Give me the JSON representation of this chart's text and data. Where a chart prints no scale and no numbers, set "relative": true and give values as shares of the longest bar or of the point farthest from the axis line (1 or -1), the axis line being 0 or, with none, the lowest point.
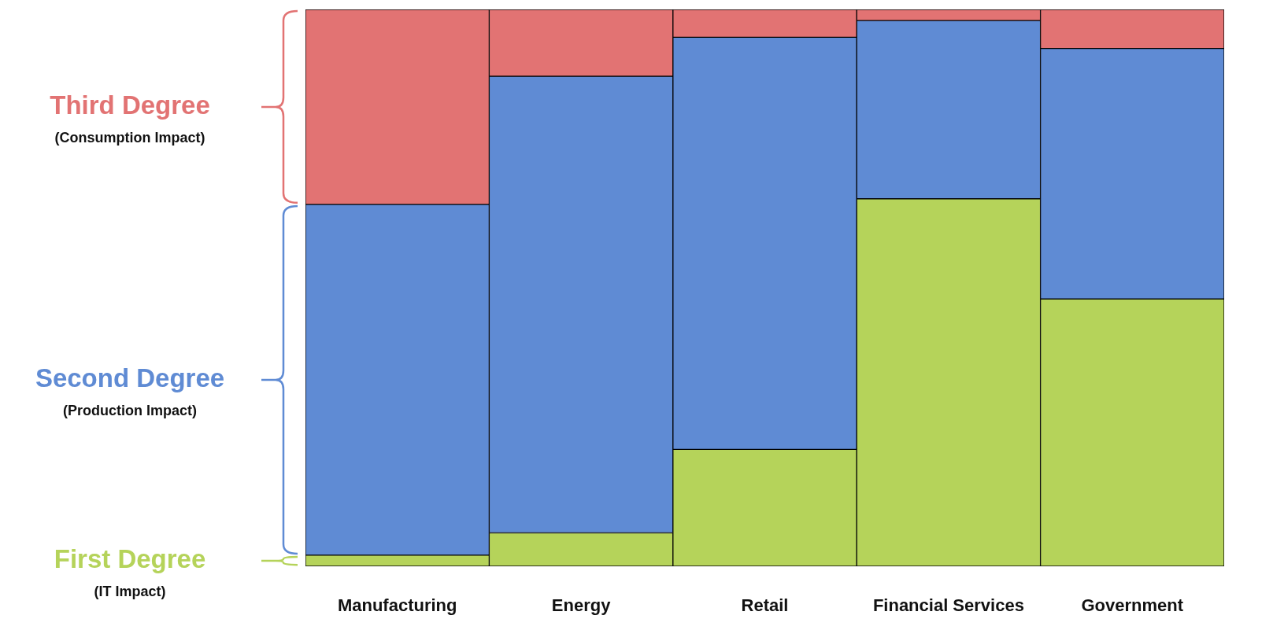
{
  "chart_data": {
    "type": "bar",
    "stacked": true,
    "relative": true,
    "legend": "left",
    "categories": [
      "Manufacturing",
      "Energy",
      "Retail",
      "Financial Services",
      "Government"
    ],
    "series": [
      {
        "name": "First Degree (IT Impact)",
        "color": "#b5d35a",
        "values": [
          0.02,
          0.06,
          0.21,
          0.66,
          0.48
        ]
      },
      {
        "name": "Second Degree (Production Impact)",
        "color": "#5f8bd4",
        "values": [
          0.63,
          0.82,
          0.74,
          0.32,
          0.45
        ]
      },
      {
        "name": "Third Degree (Consumption Impact)",
        "color": "#e27373",
        "values": [
          0.35,
          0.12,
          0.05,
          0.02,
          0.07
        ]
      }
    ]
  }
}
